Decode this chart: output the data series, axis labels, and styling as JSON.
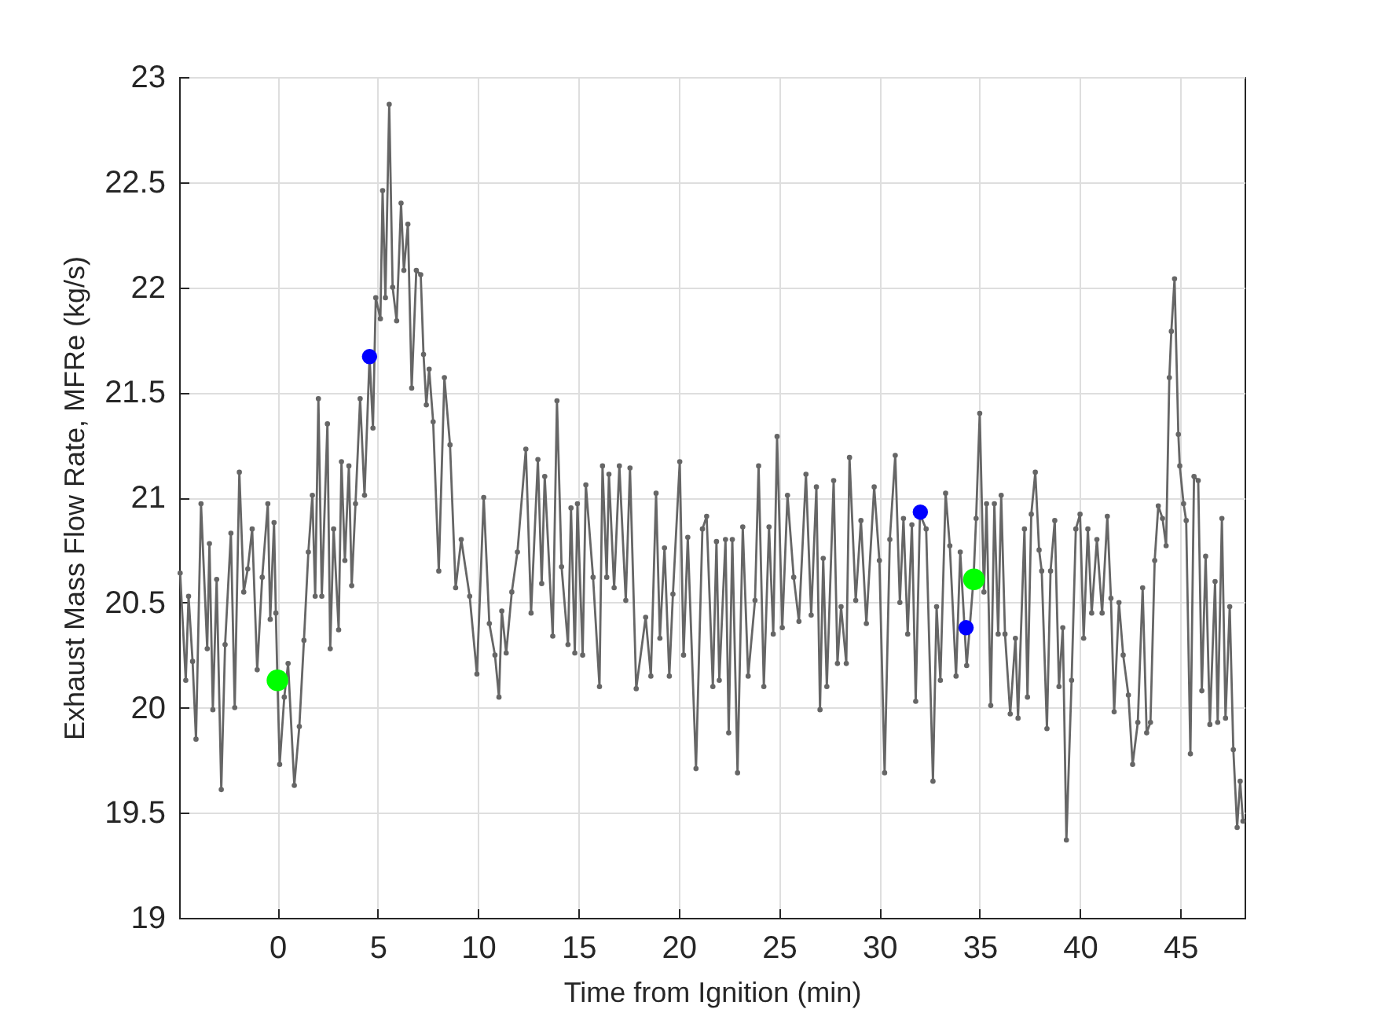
{
  "chart_data": {
    "type": "line",
    "xlabel": "Time from Ignition (min)",
    "ylabel": "Exhaust Mass Flow Rate, MFRe (kg/s)",
    "xlim": [
      -4.9,
      48.2
    ],
    "ylim": [
      19,
      23
    ],
    "xticks": [
      0,
      5,
      10,
      15,
      20,
      25,
      30,
      35,
      40,
      45
    ],
    "yticks": [
      19,
      19.5,
      20,
      20.5,
      21,
      21.5,
      22,
      22.5,
      23
    ],
    "grid": true,
    "marker": "circle",
    "series": [
      {
        "color": "#666666",
        "x": [
          -4.85,
          -4.57,
          -4.43,
          -4.23,
          -4.06,
          -3.81,
          -3.5,
          -3.39,
          -3.22,
          -3.03,
          -2.8,
          -2.61,
          -2.32,
          -2.13,
          -1.9,
          -1.68,
          -1.48,
          -1.26,
          -1.01,
          -0.76,
          -0.48,
          -0.36,
          -0.17,
          -0.08,
          0,
          0.11,
          0.34,
          0.53,
          0.84,
          1.09,
          1.32,
          1.54,
          1.74,
          1.88,
          2.04,
          2.21,
          2.49,
          2.63,
          2.8,
          3.05,
          3.19,
          3.36,
          3.56,
          3.7,
          3.89,
          4.12,
          4.34,
          4.59,
          4.76,
          4.9,
          5.13,
          5.24,
          5.38,
          5.57,
          5.74,
          5.94,
          6.16,
          6.3,
          6.5,
          6.69,
          6.92,
          7.14,
          7.28,
          7.42,
          7.56,
          7.76,
          8.04,
          8.32,
          8.6,
          8.88,
          9.16,
          9.58,
          9.94,
          10.28,
          10.56,
          10.84,
          11.04,
          11.18,
          11.4,
          11.68,
          11.96,
          12.38,
          12.64,
          12.98,
          13.17,
          13.32,
          13.72,
          13.93,
          14.16,
          14.48,
          14.63,
          14.82,
          14.95,
          15.21,
          15.37,
          15.73,
          16.05,
          16.2,
          16.41,
          16.52,
          16.78,
          17.04,
          17.36,
          17.57,
          17.88,
          18.35,
          18.61,
          18.87,
          19.06,
          19.29,
          19.53,
          19.71,
          20.05,
          20.24,
          20.45,
          20.86,
          21.18,
          21.39,
          21.7,
          21.88,
          22.02,
          22.33,
          22.49,
          22.67,
          22.93,
          23.19,
          23.46,
          23.8,
          23.98,
          24.24,
          24.5,
          24.71,
          24.9,
          25.16,
          25.42,
          25.73,
          25.99,
          26.34,
          26.6,
          26.86,
          27.04,
          27.2,
          27.38,
          27.72,
          27.91,
          28.09,
          28.35,
          28.51,
          28.82,
          29.08,
          29.35,
          29.74,
          30,
          30.26,
          30.52,
          30.79,
          31.02,
          31.2,
          31.41,
          31.62,
          31.81,
          32.02,
          32.33,
          32.67,
          32.85,
          33.04,
          33.3,
          33.51,
          33.82,
          34.03,
          34.35,
          34.69,
          34.82,
          35,
          35.21,
          35.34,
          35.55,
          35.73,
          35.92,
          36.07,
          36.26,
          36.52,
          36.78,
          36.91,
          37.23,
          37.38,
          37.57,
          37.77,
          37.96,
          38.09,
          38.35,
          38.53,
          38.74,
          38.95,
          39.14,
          39.32,
          39.58,
          39.79,
          40,
          40.18,
          40.39,
          40.58,
          40.84,
          41.1,
          41.36,
          41.54,
          41.7,
          41.94,
          42.15,
          42.41,
          42.62,
          42.88,
          43.12,
          43.32,
          43.51,
          43.72,
          43.9,
          44.11,
          44.29,
          44.45,
          44.55,
          44.71,
          44.9,
          44.97,
          45.16,
          45.29,
          45.5,
          45.68,
          45.89,
          46.07,
          46.26,
          46.47,
          46.73,
          46.86,
          47.07,
          47.25,
          47.46,
          47.64,
          47.83,
          47.98,
          48.12
        ],
        "values": [
          20.64,
          20.13,
          20.53,
          20.22,
          19.85,
          20.97,
          20.28,
          20.78,
          19.99,
          20.61,
          19.61,
          20.3,
          20.83,
          20,
          21.12,
          20.55,
          20.66,
          20.85,
          20.18,
          20.62,
          20.97,
          20.42,
          20.88,
          20.45,
          20.13,
          19.73,
          20.05,
          20.21,
          19.63,
          19.91,
          20.32,
          20.74,
          21.01,
          20.53,
          21.47,
          20.53,
          21.35,
          20.28,
          20.85,
          20.37,
          21.17,
          20.7,
          21.15,
          20.58,
          20.97,
          21.47,
          21.01,
          21.67,
          21.33,
          21.95,
          21.85,
          22.46,
          21.95,
          22.87,
          22,
          21.84,
          22.4,
          22.08,
          22.3,
          21.52,
          22.08,
          22.06,
          21.68,
          21.44,
          21.61,
          21.36,
          20.65,
          21.57,
          21.25,
          20.57,
          20.8,
          20.53,
          20.16,
          21,
          20.4,
          20.25,
          20.05,
          20.46,
          20.26,
          20.55,
          20.74,
          21.23,
          20.45,
          21.18,
          20.59,
          21.1,
          20.34,
          21.46,
          20.67,
          20.3,
          20.95,
          20.26,
          20.97,
          20.25,
          21.06,
          20.62,
          20.1,
          21.15,
          20.62,
          21.11,
          20.57,
          21.15,
          20.51,
          21.14,
          20.09,
          20.43,
          20.15,
          21.02,
          20.33,
          20.76,
          20.15,
          20.54,
          21.17,
          20.25,
          20.81,
          19.71,
          20.85,
          20.91,
          20.1,
          20.79,
          20.13,
          20.8,
          19.88,
          20.8,
          19.69,
          20.86,
          20.15,
          20.51,
          21.15,
          20.1,
          20.86,
          20.35,
          21.29,
          20.38,
          21.01,
          20.62,
          20.41,
          21.11,
          20.44,
          21.05,
          19.99,
          20.71,
          20.1,
          21.08,
          20.21,
          20.48,
          20.21,
          21.19,
          20.51,
          20.89,
          20.4,
          21.05,
          20.7,
          19.69,
          20.8,
          21.2,
          20.5,
          20.9,
          20.35,
          20.87,
          20.03,
          20.92,
          20.85,
          19.65,
          20.48,
          20.13,
          21.02,
          20.77,
          20.15,
          20.74,
          20.2,
          20.61,
          20.9,
          21.4,
          20.55,
          20.97,
          20.01,
          20.97,
          20.35,
          21.01,
          20.35,
          19.97,
          20.33,
          19.95,
          20.85,
          20.05,
          20.92,
          21.12,
          20.75,
          20.65,
          19.9,
          20.65,
          20.89,
          20.1,
          20.38,
          19.37,
          20.13,
          20.85,
          20.92,
          20.33,
          20.85,
          20.45,
          20.8,
          20.45,
          20.91,
          20.52,
          19.98,
          20.5,
          20.25,
          20.06,
          19.73,
          19.93,
          20.57,
          19.88,
          19.93,
          20.7,
          20.96,
          20.9,
          20.77,
          21.57,
          21.79,
          22.04,
          21.3,
          21.15,
          20.97,
          20.89,
          19.78,
          21.1,
          21.08,
          20.08,
          20.72,
          19.92,
          20.6,
          19.93,
          20.9,
          19.95,
          20.48,
          19.8,
          19.43,
          19.65,
          19.46
        ]
      },
      {
        "type": "scatter",
        "color": "#0000ff",
        "x": [
          4.59,
          32.04,
          34.32
        ],
        "values": [
          21.67,
          20.93,
          20.38
        ]
      },
      {
        "type": "scatter",
        "color": "#00ff00",
        "x": [
          0,
          34.71
        ],
        "values": [
          20.13,
          20.61
        ]
      }
    ]
  }
}
